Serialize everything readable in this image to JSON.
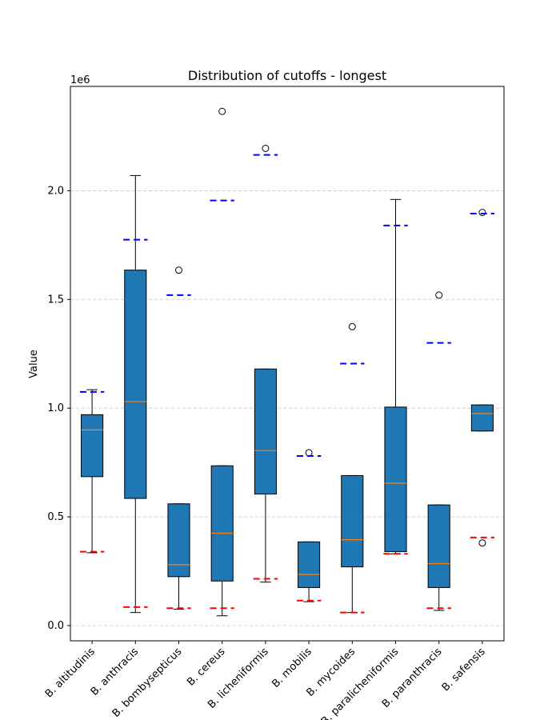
{
  "chart_data": {
    "type": "box",
    "title": "Distribution of cutoffs - longest",
    "xlabel": "",
    "ylabel": "Value",
    "y_offset_label": "1e6",
    "ylim": [
      -70000,
      2480000
    ],
    "yticks": [
      0,
      500000,
      1000000,
      1500000,
      2000000
    ],
    "ytick_labels": [
      "0.0",
      "0.5",
      "1.0",
      "1.5",
      "2.0"
    ],
    "grid": "horizontal dashed",
    "box_color": "#1f77b4",
    "median_color": "#ff7f0e",
    "upper_marker_color": "#0000ff",
    "lower_marker_color": "#ff0000",
    "categories": [
      "B. altitudinis",
      "B. anthracis",
      "B. bombysepticus",
      "B. cereus",
      "B. licheniformis",
      "B. mobilis",
      "B. mycoides",
      "B. paralicheniformis",
      "B. paranthracis",
      "B. safensis"
    ],
    "boxes": [
      {
        "whislo": 335000,
        "q1": 685000,
        "med": 900000,
        "q3": 970000,
        "whishi": 1085000,
        "fliers": []
      },
      {
        "whislo": 60000,
        "q1": 585000,
        "med": 1030000,
        "q3": 1635000,
        "whishi": 2070000,
        "fliers": []
      },
      {
        "whislo": 75000,
        "q1": 225000,
        "med": 280000,
        "q3": 560000,
        "whishi": 560000,
        "fliers": [
          1635000
        ]
      },
      {
        "whislo": 45000,
        "q1": 205000,
        "med": 425000,
        "q3": 735000,
        "whishi": 735000,
        "fliers": [
          2365000
        ]
      },
      {
        "whislo": 200000,
        "q1": 605000,
        "med": 805000,
        "q3": 1180000,
        "whishi": 1180000,
        "fliers": [
          2195000
        ]
      },
      {
        "whislo": 110000,
        "q1": 175000,
        "med": 235000,
        "q3": 385000,
        "whishi": 385000,
        "fliers": [
          795000
        ]
      },
      {
        "whislo": 60000,
        "q1": 270000,
        "med": 395000,
        "q3": 690000,
        "whishi": 690000,
        "fliers": [
          1375000
        ]
      },
      {
        "whislo": 330000,
        "q1": 340000,
        "med": 655000,
        "q3": 1005000,
        "whishi": 1960000,
        "fliers": []
      },
      {
        "whislo": 70000,
        "q1": 175000,
        "med": 285000,
        "q3": 555000,
        "whishi": 555000,
        "fliers": [
          1520000
        ]
      },
      {
        "whislo": 895000,
        "q1": 895000,
        "med": 975000,
        "q3": 1015000,
        "whishi": 1015000,
        "fliers": [
          380000,
          1900000
        ]
      }
    ],
    "upper_dashed": [
      1075000,
      1775000,
      1520000,
      1955000,
      2165000,
      780000,
      1205000,
      1840000,
      1300000,
      1895000
    ],
    "lower_dashed": [
      340000,
      85000,
      80000,
      80000,
      215000,
      115000,
      60000,
      330000,
      80000,
      405000
    ]
  }
}
